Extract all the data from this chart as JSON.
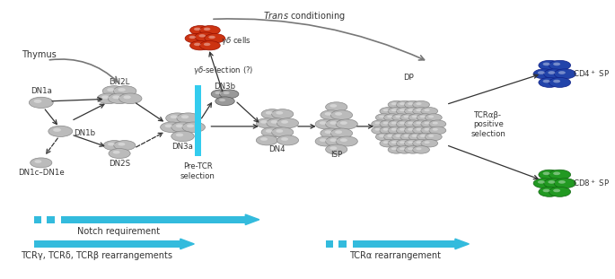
{
  "figsize": [
    6.85,
    3.11
  ],
  "dpi": 100,
  "gc": "#bbbbbb",
  "rc": "#cc3311",
  "bc": "#2244aa",
  "grc": "#229922",
  "gc_edge": "#888888",
  "rc_edge": "#991100",
  "bc_edge": "#112288",
  "grc_edge": "#116611",
  "cyan": "#33bbdd",
  "gray_arrow": "#777777",
  "black_arrow": "#333333",
  "text_color": "#333333",
  "xlim": [
    0,
    1
  ],
  "ylim": [
    0,
    1
  ],
  "thymus_label": "Thymus",
  "trans_label": "Trans conditioning",
  "yd_sel_label": "γδ-selection (?)",
  "preTCR_label": "Pre-TCR\nselection",
  "TCRab_label": "TCRαβ-\npositive\nselection",
  "notch_label": "Notch requirement",
  "tcrgdb_label": "TCRγ, TCRδ, TCRβ rearrangements",
  "tcra_label": "TCRα rearrangement"
}
